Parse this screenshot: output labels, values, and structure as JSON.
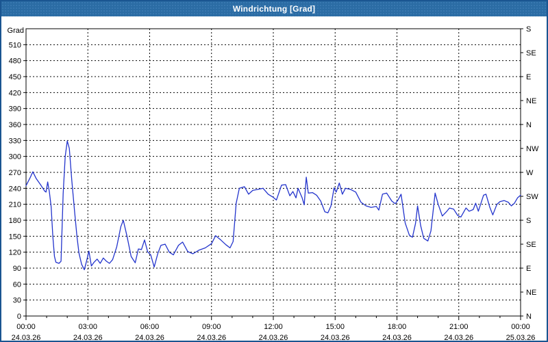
{
  "window": {
    "title": "Windrichtung [Grad]"
  },
  "colors": {
    "titlebar_bg": "#2B6CA4",
    "titlebar_text": "#FFFFFF",
    "window_border": "#1A5591",
    "plot_bg": "#FFFFFF",
    "grid": "#000000",
    "line": "#2233CC",
    "text": "#000000"
  },
  "chart_data": {
    "type": "line",
    "title": "Windrichtung [Grad]",
    "ylabel_left": "Grad",
    "y_min": 0,
    "y_max": 540,
    "y_step": 30,
    "y_left_tick_max": 510,
    "grid": true,
    "right_axis_step": 45,
    "right_axis_labels": [
      "N",
      "NE",
      "E",
      "SE",
      "S",
      "SW",
      "W",
      "NW",
      "N",
      "NE",
      "E",
      "SE",
      "S"
    ],
    "x_min_hours": 0,
    "x_max_hours": 24,
    "x_major_step_hours": 3,
    "x_minor_step_hours": 1,
    "x_tick_times": [
      "00:00",
      "03:00",
      "06:00",
      "09:00",
      "12:00",
      "15:00",
      "18:00",
      "21:00",
      "00:00"
    ],
    "x_tick_dates": [
      "24.03.26",
      "24.03.26",
      "24.03.26",
      "24.03.26",
      "24.03.26",
      "24.03.26",
      "24.03.26",
      "24.03.26",
      "25.03.26"
    ],
    "series": [
      {
        "name": "Windrichtung",
        "unit": "Grad",
        "points": [
          [
            0.0,
            245
          ],
          [
            0.2,
            260
          ],
          [
            0.33,
            271
          ],
          [
            0.5,
            258
          ],
          [
            0.7,
            247
          ],
          [
            0.9,
            235
          ],
          [
            0.97,
            233
          ],
          [
            1.05,
            252
          ],
          [
            1.13,
            234
          ],
          [
            1.22,
            205
          ],
          [
            1.3,
            150
          ],
          [
            1.38,
            112
          ],
          [
            1.45,
            101
          ],
          [
            1.6,
            99
          ],
          [
            1.7,
            103
          ],
          [
            1.8,
            230
          ],
          [
            1.9,
            300
          ],
          [
            2.0,
            329
          ],
          [
            2.1,
            315
          ],
          [
            2.22,
            255
          ],
          [
            2.35,
            199
          ],
          [
            2.47,
            150
          ],
          [
            2.57,
            118
          ],
          [
            2.7,
            97
          ],
          [
            2.83,
            87
          ],
          [
            2.95,
            105
          ],
          [
            3.05,
            122
          ],
          [
            3.17,
            94
          ],
          [
            3.3,
            101
          ],
          [
            3.45,
            107
          ],
          [
            3.6,
            99
          ],
          [
            3.75,
            109
          ],
          [
            3.9,
            103
          ],
          [
            4.05,
            99
          ],
          [
            4.2,
            106
          ],
          [
            4.4,
            130
          ],
          [
            4.6,
            168
          ],
          [
            4.72,
            180
          ],
          [
            4.9,
            150
          ],
          [
            5.1,
            112
          ],
          [
            5.3,
            100
          ],
          [
            5.45,
            126
          ],
          [
            5.6,
            125
          ],
          [
            5.75,
            143
          ],
          [
            5.9,
            121
          ],
          [
            6.05,
            115
          ],
          [
            6.22,
            92
          ],
          [
            6.4,
            118
          ],
          [
            6.55,
            133
          ],
          [
            6.75,
            135
          ],
          [
            6.95,
            120
          ],
          [
            7.15,
            115
          ],
          [
            7.4,
            133
          ],
          [
            7.6,
            139
          ],
          [
            7.85,
            121
          ],
          [
            8.1,
            117
          ],
          [
            8.4,
            124
          ],
          [
            8.7,
            128
          ],
          [
            9.0,
            136
          ],
          [
            9.2,
            151
          ],
          [
            9.45,
            143
          ],
          [
            9.7,
            134
          ],
          [
            9.9,
            128
          ],
          [
            10.05,
            140
          ],
          [
            10.2,
            212
          ],
          [
            10.35,
            240
          ],
          [
            10.6,
            243
          ],
          [
            10.8,
            229
          ],
          [
            11.0,
            236
          ],
          [
            11.25,
            238
          ],
          [
            11.5,
            240
          ],
          [
            11.75,
            229
          ],
          [
            12.0,
            223
          ],
          [
            12.15,
            218
          ],
          [
            12.4,
            246
          ],
          [
            12.6,
            247
          ],
          [
            12.8,
            226
          ],
          [
            12.95,
            234
          ],
          [
            13.1,
            222
          ],
          [
            13.2,
            240
          ],
          [
            13.4,
            222
          ],
          [
            13.5,
            209
          ],
          [
            13.6,
            261
          ],
          [
            13.7,
            231
          ],
          [
            13.9,
            232
          ],
          [
            14.1,
            227
          ],
          [
            14.3,
            216
          ],
          [
            14.5,
            196
          ],
          [
            14.65,
            194
          ],
          [
            14.8,
            207
          ],
          [
            14.95,
            241
          ],
          [
            15.05,
            233
          ],
          [
            15.2,
            250
          ],
          [
            15.35,
            229
          ],
          [
            15.5,
            240
          ],
          [
            15.75,
            238
          ],
          [
            16.0,
            233
          ],
          [
            16.25,
            214
          ],
          [
            16.5,
            207
          ],
          [
            16.75,
            204
          ],
          [
            17.0,
            206
          ],
          [
            17.12,
            199
          ],
          [
            17.3,
            229
          ],
          [
            17.5,
            231
          ],
          [
            17.75,
            216
          ],
          [
            17.92,
            211
          ],
          [
            18.05,
            218
          ],
          [
            18.2,
            229
          ],
          [
            18.4,
            175
          ],
          [
            18.6,
            152
          ],
          [
            18.75,
            148
          ],
          [
            18.9,
            174
          ],
          [
            19.0,
            207
          ],
          [
            19.15,
            170
          ],
          [
            19.3,
            146
          ],
          [
            19.5,
            141
          ],
          [
            19.65,
            160
          ],
          [
            19.85,
            231
          ],
          [
            20.0,
            210
          ],
          [
            20.2,
            188
          ],
          [
            20.4,
            196
          ],
          [
            20.55,
            203
          ],
          [
            20.75,
            201
          ],
          [
            20.95,
            189
          ],
          [
            21.1,
            186
          ],
          [
            21.35,
            203
          ],
          [
            21.5,
            197
          ],
          [
            21.7,
            200
          ],
          [
            21.82,
            212
          ],
          [
            21.95,
            197
          ],
          [
            22.2,
            227
          ],
          [
            22.32,
            229
          ],
          [
            22.5,
            205
          ],
          [
            22.65,
            190
          ],
          [
            22.85,
            210
          ],
          [
            23.0,
            215
          ],
          [
            23.2,
            217
          ],
          [
            23.4,
            214
          ],
          [
            23.55,
            207
          ],
          [
            23.7,
            212
          ],
          [
            23.85,
            222
          ],
          [
            24.0,
            227
          ]
        ]
      }
    ]
  }
}
